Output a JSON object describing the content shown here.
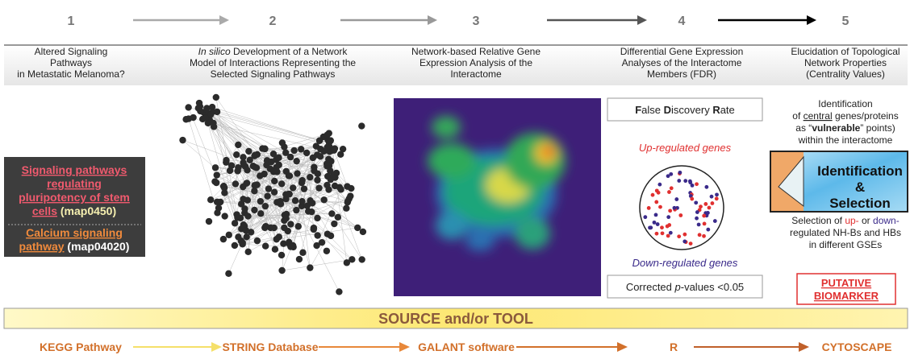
{
  "steps": [
    {
      "number": "1",
      "header": [
        "Altered Signaling",
        "Pathways",
        "in Metastatic Melanoma?"
      ]
    },
    {
      "number": "2",
      "header": [
        "In silico",
        " Development of a Network",
        "Model of Interactions Representing the",
        "Selected Signaling Pathways"
      ]
    },
    {
      "number": "3",
      "header": [
        "Network-based Relative Gene",
        "Expression Analysis of the",
        "Interactome"
      ]
    },
    {
      "number": "4",
      "header": [
        "Differential Gene Expression",
        "Analyses of the Interactome",
        "Members (FDR)"
      ]
    },
    {
      "number": "5",
      "header": [
        "Elucidation of Topological",
        "Network Properties",
        "(Centrality Values)"
      ]
    }
  ],
  "pathways": {
    "first": [
      "Signaling pathways",
      "regulating",
      "pluripotency of stem",
      "cells",
      " (map0450)"
    ],
    "second": [
      "Calcium signaling",
      "pathway",
      " (map04020)"
    ]
  },
  "fdr": {
    "title": [
      "F",
      "alse ",
      "D",
      "iscovery ",
      "R",
      "ate"
    ],
    "up": "Up-regulated genes",
    "down": "Down-regulated genes",
    "corrected": [
      "Corrected ",
      "p",
      "-values <0.05"
    ]
  },
  "centrality": {
    "intro": [
      "Identification",
      "of ",
      "central",
      " genes/proteins",
      "as “",
      "vulnerable",
      "” points)",
      "within the interactome"
    ],
    "image": [
      "Identification",
      "&",
      "Selection"
    ],
    "selection": [
      "Selection of ",
      "up-",
      " or ",
      "down-",
      "regulated NH-Bs and HBs",
      "in different GSEs"
    ],
    "biomarker": [
      "PUTATIVE",
      "BIOMARKER"
    ]
  },
  "source": "SOURCE and/or TOOL",
  "tools": [
    "KEGG Pathway",
    "STRING Database",
    "GALANT software",
    "R",
    "CYTOSCAPE"
  ]
}
